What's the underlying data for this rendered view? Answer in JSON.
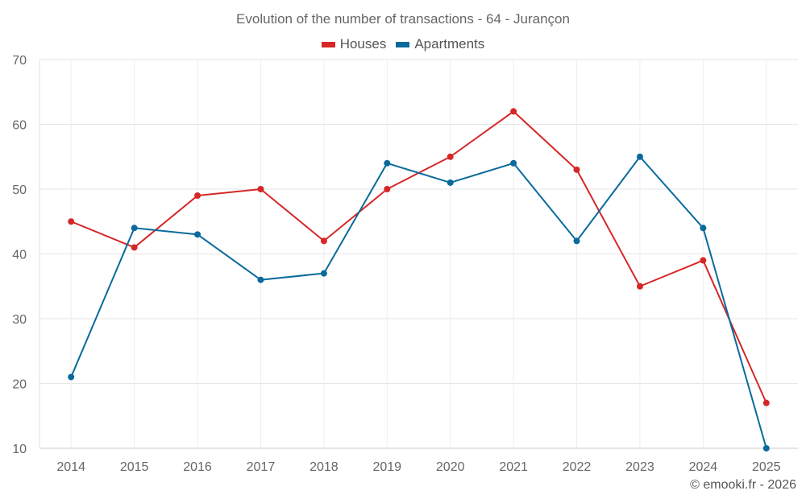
{
  "chart_data": {
    "type": "line",
    "title": "Evolution of the number of transactions - 64 - Jurançon",
    "xlabel": "",
    "ylabel": "",
    "ylim": [
      10,
      70
    ],
    "yticks": [
      10,
      20,
      30,
      40,
      50,
      60,
      70
    ],
    "categories": [
      "2014",
      "2015",
      "2016",
      "2017",
      "2018",
      "2019",
      "2020",
      "2021",
      "2022",
      "2023",
      "2024",
      "2025"
    ],
    "series": [
      {
        "name": "Houses",
        "color": "#d62728",
        "values": [
          45,
          41,
          49,
          50,
          42,
          50,
          55,
          62,
          53,
          35,
          39,
          17
        ]
      },
      {
        "name": "Apartments",
        "color": "#0b6a9c",
        "values": [
          21,
          44,
          43,
          36,
          37,
          54,
          51,
          54,
          42,
          55,
          44,
          10
        ]
      }
    ],
    "grid": true,
    "legend_position": "top-center"
  },
  "credit": "© emooki.fr - 2026"
}
